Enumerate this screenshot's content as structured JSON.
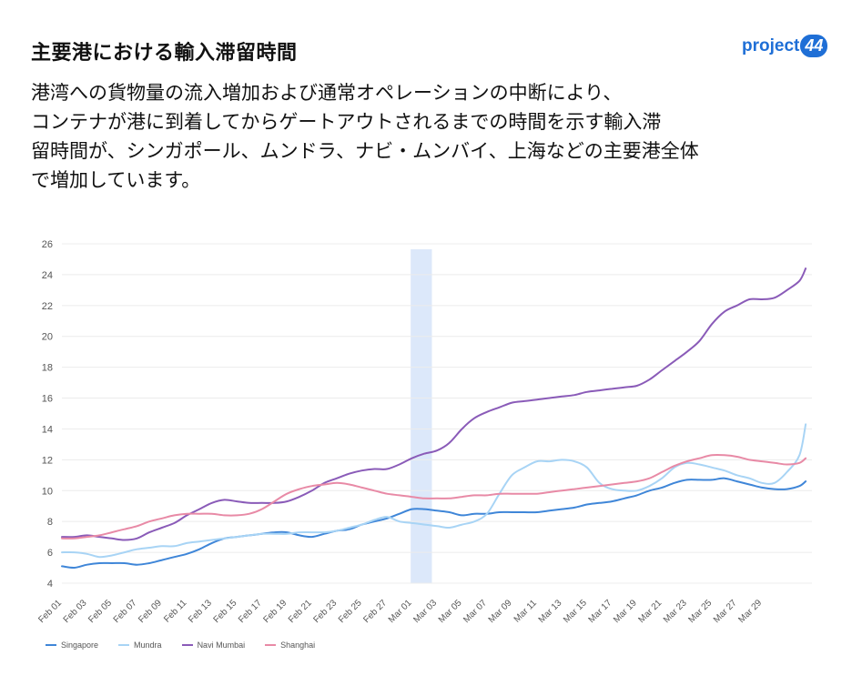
{
  "header": {
    "title": "主要港における輸入滞留時間",
    "description_lines": [
      "港湾への貨物量の流入増加および通常オペレーションの中断により、",
      "コンテナが港に到着してからゲートアウトされるまでの時間を示す輸入滞",
      "留時間が、シンガポール、ムンドラ、ナビ・ムンバイ、上海などの主要港全体",
      "で増加しています。"
    ]
  },
  "logo": {
    "text": "project",
    "badge": "44"
  },
  "chart_data": {
    "type": "line",
    "title": "",
    "xlabel": "",
    "ylabel": "",
    "ylim": [
      4,
      26
    ],
    "y_ticks": [
      "4",
      "6",
      "8",
      "10",
      "12",
      "14",
      "16",
      "18",
      "20",
      "22",
      "24",
      "26"
    ],
    "x_tick_labels": [
      "Feb 01",
      "Feb 03",
      "Feb 05",
      "Feb 07",
      "Feb 09",
      "Feb 11",
      "Feb 13",
      "Feb 15",
      "Feb 17",
      "Feb 19",
      "Feb 21",
      "Feb 23",
      "Feb 25",
      "Feb 27",
      "Mar 01",
      "Mar 03",
      "Mar 05",
      "Mar 07",
      "Mar 09",
      "Mar 11",
      "Mar 13",
      "Mar 15",
      "Mar 17",
      "Mar 19",
      "Mar 21",
      "Mar 23",
      "Mar 25",
      "Mar 27",
      "Mar 29"
    ],
    "x_day_range": [
      1,
      59
    ],
    "highlight": {
      "from_day": 28.9,
      "to_day": 30.6,
      "color": "#dce8fa"
    },
    "grid": true,
    "legend_position": "bottom-left",
    "series": [
      {
        "name": "Singapore",
        "color": "#3f86d8",
        "points": [
          [
            1,
            5.1
          ],
          [
            2,
            5.0
          ],
          [
            3,
            5.2
          ],
          [
            4,
            5.3
          ],
          [
            5,
            5.3
          ],
          [
            6,
            5.3
          ],
          [
            7,
            5.2
          ],
          [
            8,
            5.3
          ],
          [
            9,
            5.5
          ],
          [
            10,
            5.7
          ],
          [
            11,
            5.9
          ],
          [
            12,
            6.2
          ],
          [
            13,
            6.6
          ],
          [
            14,
            6.9
          ],
          [
            15,
            7.0
          ],
          [
            16,
            7.1
          ],
          [
            17,
            7.2
          ],
          [
            18,
            7.3
          ],
          [
            19,
            7.3
          ],
          [
            20,
            7.1
          ],
          [
            21,
            7.0
          ],
          [
            22,
            7.2
          ],
          [
            23,
            7.4
          ],
          [
            24,
            7.5
          ],
          [
            25,
            7.8
          ],
          [
            26,
            8.0
          ],
          [
            27,
            8.2
          ],
          [
            28,
            8.5
          ],
          [
            29,
            8.8
          ],
          [
            30,
            8.8
          ],
          [
            31,
            8.7
          ],
          [
            32,
            8.6
          ],
          [
            33,
            8.4
          ],
          [
            34,
            8.5
          ],
          [
            35,
            8.5
          ],
          [
            36,
            8.6
          ],
          [
            37,
            8.6
          ],
          [
            38,
            8.6
          ],
          [
            39,
            8.6
          ],
          [
            40,
            8.7
          ],
          [
            41,
            8.8
          ],
          [
            42,
            8.9
          ],
          [
            43,
            9.1
          ],
          [
            44,
            9.2
          ],
          [
            45,
            9.3
          ],
          [
            46,
            9.5
          ],
          [
            47,
            9.7
          ],
          [
            48,
            10.0
          ],
          [
            49,
            10.2
          ],
          [
            50,
            10.5
          ],
          [
            51,
            10.7
          ],
          [
            52,
            10.7
          ],
          [
            53,
            10.7
          ],
          [
            54,
            10.8
          ],
          [
            55,
            10.6
          ],
          [
            56,
            10.4
          ],
          [
            57,
            10.2
          ],
          [
            58,
            10.1
          ],
          [
            59,
            10.1
          ],
          [
            60,
            10.3
          ],
          [
            60.5,
            10.6
          ]
        ]
      },
      {
        "name": "Mundra",
        "color": "#a8d4f5",
        "points": [
          [
            1,
            6.0
          ],
          [
            2,
            6.0
          ],
          [
            3,
            5.9
          ],
          [
            4,
            5.7
          ],
          [
            5,
            5.8
          ],
          [
            6,
            6.0
          ],
          [
            7,
            6.2
          ],
          [
            8,
            6.3
          ],
          [
            9,
            6.4
          ],
          [
            10,
            6.4
          ],
          [
            11,
            6.6
          ],
          [
            12,
            6.7
          ],
          [
            13,
            6.8
          ],
          [
            14,
            6.9
          ],
          [
            15,
            7.0
          ],
          [
            16,
            7.1
          ],
          [
            17,
            7.2
          ],
          [
            18,
            7.2
          ],
          [
            19,
            7.2
          ],
          [
            20,
            7.3
          ],
          [
            21,
            7.3
          ],
          [
            22,
            7.3
          ],
          [
            23,
            7.4
          ],
          [
            24,
            7.6
          ],
          [
            25,
            7.8
          ],
          [
            26,
            8.1
          ],
          [
            27,
            8.3
          ],
          [
            28,
            8.0
          ],
          [
            29,
            7.9
          ],
          [
            30,
            7.8
          ],
          [
            31,
            7.7
          ],
          [
            32,
            7.6
          ],
          [
            33,
            7.8
          ],
          [
            34,
            8.0
          ],
          [
            35,
            8.5
          ],
          [
            36,
            9.8
          ],
          [
            37,
            11.0
          ],
          [
            38,
            11.5
          ],
          [
            39,
            11.9
          ],
          [
            40,
            11.9
          ],
          [
            41,
            12.0
          ],
          [
            42,
            11.9
          ],
          [
            43,
            11.5
          ],
          [
            44,
            10.5
          ],
          [
            45,
            10.1
          ],
          [
            46,
            10.0
          ],
          [
            47,
            10.0
          ],
          [
            48,
            10.3
          ],
          [
            49,
            10.8
          ],
          [
            50,
            11.5
          ],
          [
            51,
            11.8
          ],
          [
            52,
            11.7
          ],
          [
            53,
            11.5
          ],
          [
            54,
            11.3
          ],
          [
            55,
            11.0
          ],
          [
            56,
            10.8
          ],
          [
            57,
            10.5
          ],
          [
            58,
            10.5
          ],
          [
            59,
            11.2
          ],
          [
            60,
            12.3
          ],
          [
            60.5,
            14.3
          ]
        ]
      },
      {
        "name": "Navi Mumbai",
        "color": "#8a5bb8",
        "points": [
          [
            1,
            7.0
          ],
          [
            2,
            7.0
          ],
          [
            3,
            7.1
          ],
          [
            4,
            7.0
          ],
          [
            5,
            6.9
          ],
          [
            6,
            6.8
          ],
          [
            7,
            6.9
          ],
          [
            8,
            7.3
          ],
          [
            9,
            7.6
          ],
          [
            10,
            7.9
          ],
          [
            11,
            8.4
          ],
          [
            12,
            8.8
          ],
          [
            13,
            9.2
          ],
          [
            14,
            9.4
          ],
          [
            15,
            9.3
          ],
          [
            16,
            9.2
          ],
          [
            17,
            9.2
          ],
          [
            18,
            9.2
          ],
          [
            19,
            9.3
          ],
          [
            20,
            9.6
          ],
          [
            21,
            10.0
          ],
          [
            22,
            10.5
          ],
          [
            23,
            10.8
          ],
          [
            24,
            11.1
          ],
          [
            25,
            11.3
          ],
          [
            26,
            11.4
          ],
          [
            27,
            11.4
          ],
          [
            28,
            11.7
          ],
          [
            29,
            12.1
          ],
          [
            30,
            12.4
          ],
          [
            31,
            12.6
          ],
          [
            32,
            13.1
          ],
          [
            33,
            14.0
          ],
          [
            34,
            14.7
          ],
          [
            35,
            15.1
          ],
          [
            36,
            15.4
          ],
          [
            37,
            15.7
          ],
          [
            38,
            15.8
          ],
          [
            39,
            15.9
          ],
          [
            40,
            16.0
          ],
          [
            41,
            16.1
          ],
          [
            42,
            16.2
          ],
          [
            43,
            16.4
          ],
          [
            44,
            16.5
          ],
          [
            45,
            16.6
          ],
          [
            46,
            16.7
          ],
          [
            47,
            16.8
          ],
          [
            48,
            17.2
          ],
          [
            49,
            17.8
          ],
          [
            50,
            18.4
          ],
          [
            51,
            19.0
          ],
          [
            52,
            19.7
          ],
          [
            53,
            20.8
          ],
          [
            54,
            21.6
          ],
          [
            55,
            22.0
          ],
          [
            56,
            22.4
          ],
          [
            57,
            22.4
          ],
          [
            58,
            22.5
          ],
          [
            59,
            23.0
          ],
          [
            60,
            23.6
          ],
          [
            60.5,
            24.4
          ]
        ]
      },
      {
        "name": "Shanghai",
        "color": "#e88aa6",
        "points": [
          [
            1,
            6.9
          ],
          [
            2,
            6.9
          ],
          [
            3,
            7.0
          ],
          [
            4,
            7.1
          ],
          [
            5,
            7.3
          ],
          [
            6,
            7.5
          ],
          [
            7,
            7.7
          ],
          [
            8,
            8.0
          ],
          [
            9,
            8.2
          ],
          [
            10,
            8.4
          ],
          [
            11,
            8.5
          ],
          [
            12,
            8.5
          ],
          [
            13,
            8.5
          ],
          [
            14,
            8.4
          ],
          [
            15,
            8.4
          ],
          [
            16,
            8.5
          ],
          [
            17,
            8.8
          ],
          [
            18,
            9.3
          ],
          [
            19,
            9.8
          ],
          [
            20,
            10.1
          ],
          [
            21,
            10.3
          ],
          [
            22,
            10.4
          ],
          [
            23,
            10.5
          ],
          [
            24,
            10.4
          ],
          [
            25,
            10.2
          ],
          [
            26,
            10.0
          ],
          [
            27,
            9.8
          ],
          [
            28,
            9.7
          ],
          [
            29,
            9.6
          ],
          [
            30,
            9.5
          ],
          [
            31,
            9.5
          ],
          [
            32,
            9.5
          ],
          [
            33,
            9.6
          ],
          [
            34,
            9.7
          ],
          [
            35,
            9.7
          ],
          [
            36,
            9.8
          ],
          [
            37,
            9.8
          ],
          [
            38,
            9.8
          ],
          [
            39,
            9.8
          ],
          [
            40,
            9.9
          ],
          [
            41,
            10.0
          ],
          [
            42,
            10.1
          ],
          [
            43,
            10.2
          ],
          [
            44,
            10.3
          ],
          [
            45,
            10.4
          ],
          [
            46,
            10.5
          ],
          [
            47,
            10.6
          ],
          [
            48,
            10.8
          ],
          [
            49,
            11.2
          ],
          [
            50,
            11.6
          ],
          [
            51,
            11.9
          ],
          [
            52,
            12.1
          ],
          [
            53,
            12.3
          ],
          [
            54,
            12.3
          ],
          [
            55,
            12.2
          ],
          [
            56,
            12.0
          ],
          [
            57,
            11.9
          ],
          [
            58,
            11.8
          ],
          [
            59,
            11.7
          ],
          [
            60,
            11.8
          ],
          [
            60.5,
            12.1
          ]
        ]
      }
    ]
  }
}
